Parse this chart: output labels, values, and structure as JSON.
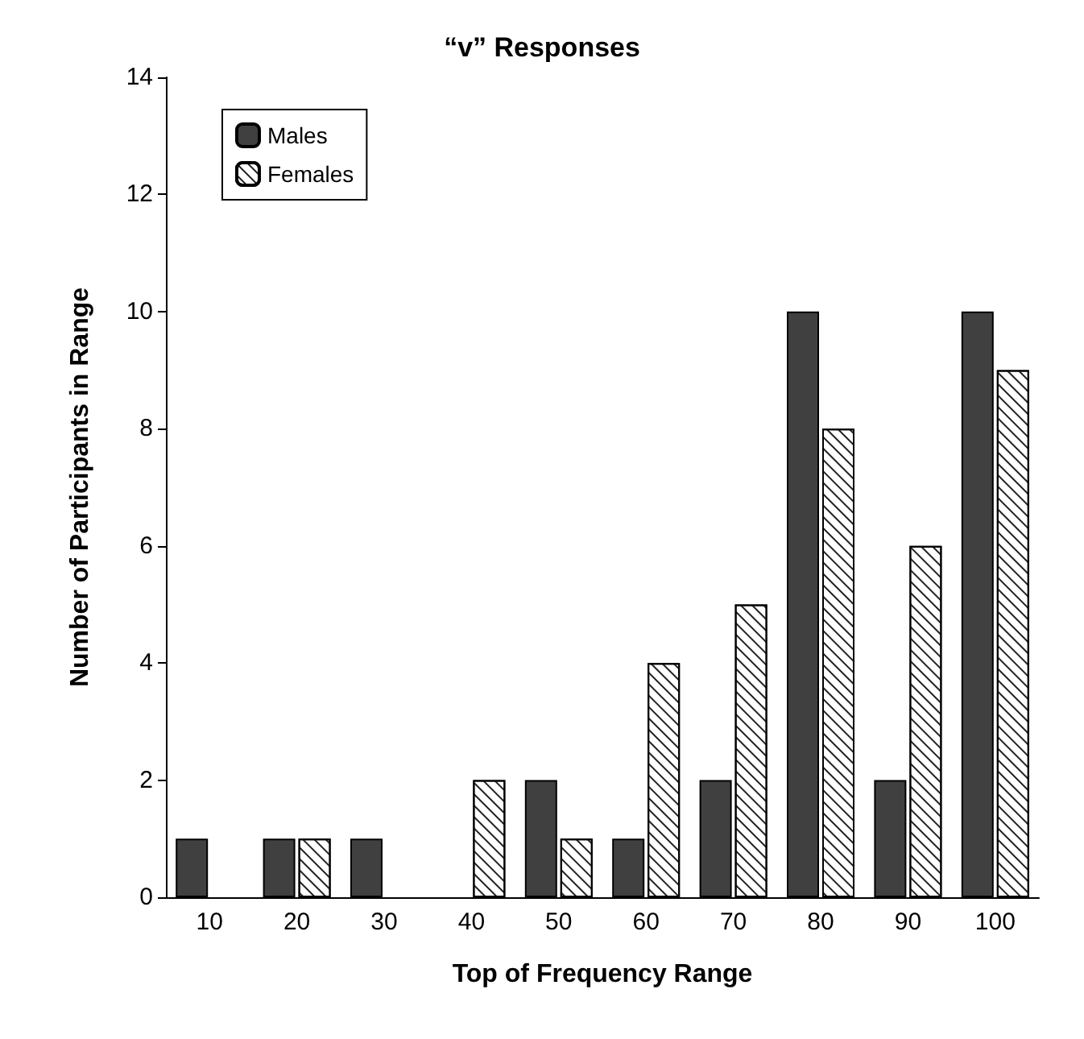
{
  "chart_data": {
    "type": "bar",
    "title": "“v” Responses",
    "xlabel": "Top of Frequency Range",
    "ylabel": "Number of Participants in Range",
    "categories": [
      "10",
      "20",
      "30",
      "40",
      "50",
      "60",
      "70",
      "80",
      "90",
      "100"
    ],
    "series": [
      {
        "name": "Males",
        "color": "#404040",
        "values": [
          1,
          1,
          1,
          0,
          2,
          1,
          2,
          10,
          2,
          10
        ]
      },
      {
        "name": "Females",
        "color": "#ffffff",
        "values": [
          0,
          1,
          0,
          2,
          1,
          4,
          5,
          8,
          6,
          9
        ]
      }
    ],
    "ylim": [
      0,
      14
    ],
    "yticks": [
      0,
      2,
      4,
      6,
      8,
      10,
      12,
      14
    ],
    "grid": false,
    "legend": "top left"
  }
}
